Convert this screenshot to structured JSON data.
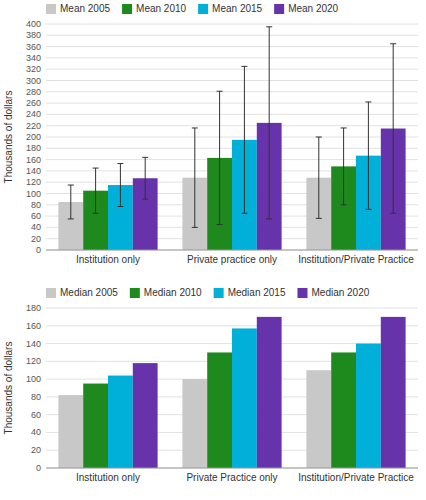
{
  "chart_data": [
    {
      "type": "bar",
      "categories": [
        "Institution only",
        "Private practice only",
        "Institution/Private Practice"
      ],
      "series": [
        {
          "name": "Mean 2005",
          "color": "#c8c8c8",
          "values": [
            85,
            128,
            128
          ],
          "errors": [
            30,
            88,
            72
          ]
        },
        {
          "name": "Mean 2010",
          "color": "#1e8a1e",
          "values": [
            105,
            163,
            148
          ],
          "errors": [
            40,
            118,
            68
          ]
        },
        {
          "name": "Mean 2015",
          "color": "#00b0d8",
          "values": [
            115,
            195,
            167
          ],
          "errors": [
            38,
            130,
            95
          ]
        },
        {
          "name": "Mean 2020",
          "color": "#6633aa",
          "values": [
            127,
            225,
            215
          ],
          "errors": [
            37,
            170,
            150
          ]
        }
      ],
      "ylabel": "Thousands of dollars",
      "ylim": [
        0,
        400
      ],
      "yticks": [
        0,
        20,
        40,
        60,
        80,
        100,
        120,
        140,
        160,
        180,
        200,
        220,
        240,
        260,
        280,
        300,
        320,
        340,
        360,
        380,
        400
      ],
      "grid": true,
      "legend": "upper left"
    },
    {
      "type": "bar",
      "categories": [
        "Institution only",
        "Private Practice only",
        "Institution/Private Practice"
      ],
      "series": [
        {
          "name": "Median 2005",
          "color": "#c8c8c8",
          "values": [
            82,
            100,
            110
          ]
        },
        {
          "name": "Median 2010",
          "color": "#1e8a1e",
          "values": [
            95,
            130,
            130
          ]
        },
        {
          "name": "Median 2015",
          "color": "#00b0d8",
          "values": [
            104,
            157,
            140
          ]
        },
        {
          "name": "Median 2020",
          "color": "#6633aa",
          "values": [
            118,
            170,
            170
          ]
        }
      ],
      "ylabel": "Thousands of dollars",
      "ylim": [
        0,
        180
      ],
      "yticks": [
        0,
        20,
        40,
        60,
        80,
        100,
        120,
        140,
        160,
        180
      ],
      "grid": true,
      "legend": "upper left"
    }
  ]
}
